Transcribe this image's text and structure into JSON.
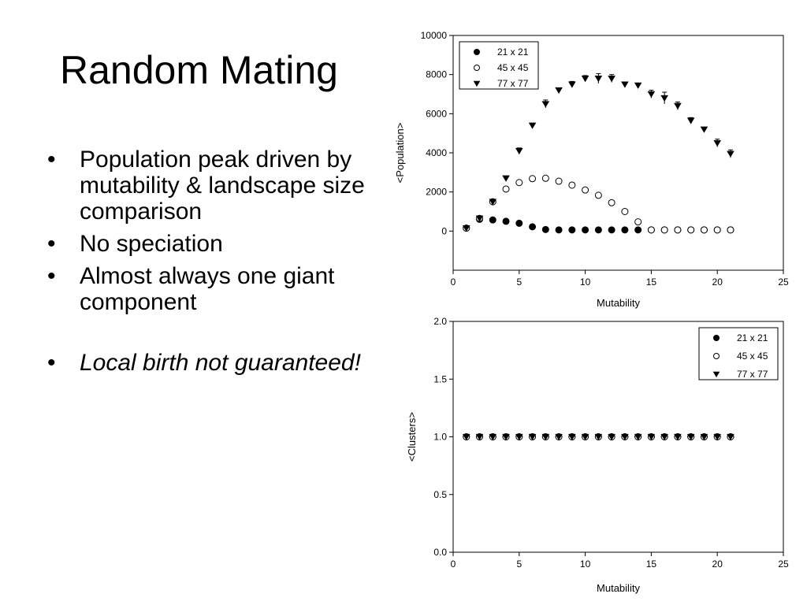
{
  "slide": {
    "title": "Random Mating",
    "bullets": [
      "Population peak driven by mutability & landscape size comparison",
      "No speciation",
      "Almost always one giant component",
      "Local birth not guaranteed!"
    ]
  },
  "chart_data": [
    {
      "type": "scatter",
      "xlabel": "Mutability",
      "ylabel": "<Population>",
      "xlim": [
        0,
        25
      ],
      "ylim": [
        -2000,
        10000
      ],
      "xticks": [
        0,
        5,
        10,
        15,
        20,
        25
      ],
      "yticks": [
        0,
        2000,
        4000,
        6000,
        8000,
        10000
      ],
      "grid": false,
      "legend_position": "top-left",
      "x": [
        1,
        2,
        3,
        4,
        5,
        6,
        7,
        8,
        9,
        10,
        11,
        12,
        13,
        14,
        15,
        16,
        17,
        18,
        19,
        20,
        21
      ],
      "series": [
        {
          "name": "21 x 21",
          "marker": "filled-circle",
          "values": [
            150,
            600,
            570,
            500,
            400,
            220,
            80,
            60,
            60,
            60,
            60,
            60,
            60,
            60,
            60,
            60,
            60,
            60,
            60,
            60,
            60
          ],
          "errors": [
            0,
            60,
            40,
            40,
            30,
            30,
            20,
            0,
            0,
            0,
            0,
            0,
            0,
            0,
            0,
            0,
            0,
            0,
            0,
            0,
            0
          ]
        },
        {
          "name": "45 x 45",
          "marker": "open-circle",
          "values": [
            150,
            650,
            1500,
            2150,
            2480,
            2680,
            2700,
            2550,
            2350,
            2100,
            1830,
            1450,
            1000,
            470,
            60,
            60,
            60,
            60,
            60,
            60,
            60
          ],
          "errors": [
            0,
            60,
            80,
            80,
            80,
            80,
            80,
            80,
            80,
            80,
            80,
            80,
            80,
            80,
            0,
            0,
            0,
            0,
            0,
            0,
            0
          ]
        },
        {
          "name": "77 x 77",
          "marker": "filled-triangle-down",
          "values": [
            150,
            650,
            1500,
            2700,
            4100,
            5400,
            6500,
            7200,
            7500,
            7800,
            7800,
            7800,
            7500,
            7450,
            7000,
            6800,
            6400,
            5650,
            5200,
            4500,
            3950
          ],
          "errors": [
            0,
            60,
            100,
            100,
            150,
            100,
            200,
            100,
            150,
            150,
            250,
            200,
            100,
            100,
            200,
            300,
            200,
            150,
            100,
            200,
            200
          ]
        }
      ]
    },
    {
      "type": "scatter",
      "xlabel": "Mutability",
      "ylabel": "<Clusters>",
      "xlim": [
        0,
        25
      ],
      "ylim": [
        0,
        2
      ],
      "xticks": [
        0,
        5,
        10,
        15,
        20,
        25
      ],
      "yticks": [
        0.0,
        0.5,
        1.0,
        1.5,
        2.0
      ],
      "ytick_labels": [
        "0.0",
        "0.5",
        "1.0",
        "1.5",
        "2.0"
      ],
      "grid": false,
      "legend_position": "top-right",
      "x": [
        1,
        2,
        3,
        4,
        5,
        6,
        7,
        8,
        9,
        10,
        11,
        12,
        13,
        14,
        15,
        16,
        17,
        18,
        19,
        20,
        21
      ],
      "series": [
        {
          "name": "21 x 21",
          "marker": "filled-circle",
          "values": [
            1,
            1,
            1,
            1,
            1,
            1,
            1,
            1,
            1,
            1,
            1,
            1,
            1,
            1,
            1,
            1,
            1,
            1,
            1,
            1,
            1
          ]
        },
        {
          "name": "45 x 45",
          "marker": "open-circle",
          "values": [
            1,
            1,
            1,
            1,
            1,
            1,
            1,
            1,
            1,
            1,
            1,
            1,
            1,
            1,
            1,
            1,
            1,
            1,
            1,
            1,
            1
          ]
        },
        {
          "name": "77 x 77",
          "marker": "filled-triangle-down",
          "values": [
            1,
            1,
            1,
            1,
            1,
            1,
            1,
            1,
            1,
            1,
            1,
            1,
            1,
            1,
            1,
            1,
            1,
            1,
            1,
            1,
            1
          ]
        }
      ]
    }
  ]
}
